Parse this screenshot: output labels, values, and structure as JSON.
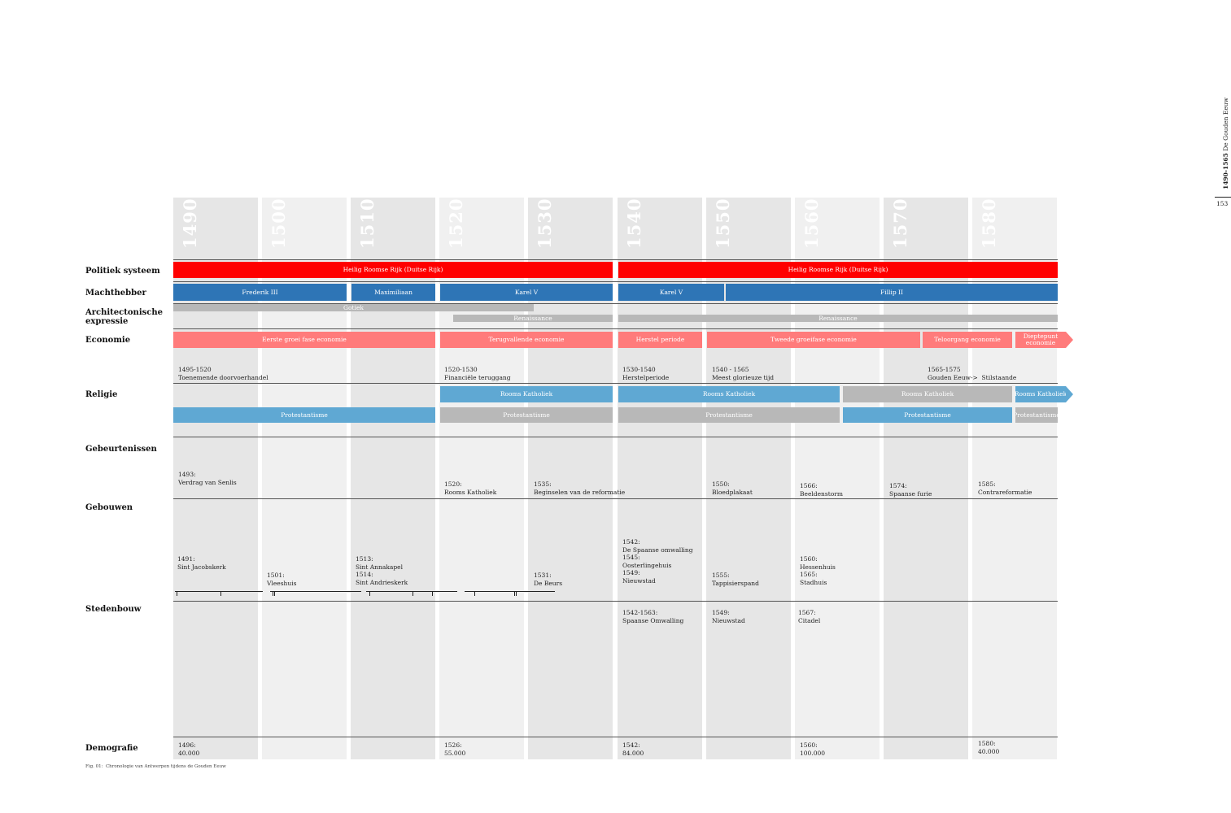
{
  "side_header": {
    "years": "1490-1565",
    "title": "De Gouden Eeuw"
  },
  "page_number": "153",
  "decades": [
    "1490",
    "1500",
    "1510",
    "1520",
    "1530",
    "1540",
    "1550",
    "1560",
    "1570",
    "1580"
  ],
  "rows": {
    "politiek": "Politiek systeem",
    "machthebber": "Machthebber",
    "architectonische_1": "Architectonische",
    "architectonische_2": "expressie",
    "economie": "Economie",
    "religie": "Religie",
    "gebeurtenissen": "Gebeurtenissen",
    "gebouwen": "Gebouwen",
    "stedenbouw": "Stedenbouw",
    "demografie": "Demografie"
  },
  "politiek": [
    "Heilig Roomse Rijk (Duitse Rijk)",
    "Heilig Roomse Rijk (Duitse Rijk)"
  ],
  "machthebber": [
    "Frederik III",
    "Maximiliaan",
    "Karel V",
    "Karel V",
    "Fillip II"
  ],
  "architectuur": [
    "Gotiek",
    "Renaissance",
    "Renaissance"
  ],
  "economie": [
    "Eerste groei fase economie",
    "Terugvallende economie",
    "Herstel periode",
    "Tweede groeifase economie",
    "Teloorgang economie",
    "Dieptepunt",
    "economie"
  ],
  "economie_notes": [
    {
      "years": "1495-1520",
      "text": "Toenemende doorvoerhandel"
    },
    {
      "years": "1520-1530",
      "text": "Financiële teruggang"
    },
    {
      "years": "1530-1540",
      "text": "Herstelperiode"
    },
    {
      "years": "1540 - 1565",
      "text": "Meest glorieuze tijd"
    },
    {
      "years": "1565-1575",
      "text": "Gouden Eeuw->  Stilstaande"
    }
  ],
  "religie": [
    "Rooms Katholiek",
    "Rooms Katholiek",
    "Rooms Katholiek",
    "Rooms Katholiek",
    "Protestantisme",
    "Protestantisme",
    "Protestantisme",
    "Protestantisme",
    "Protestantisme"
  ],
  "gebeurtenissen": [
    {
      "year": "1493:",
      "text": "Verdrag van Senlis"
    },
    {
      "year": "1520:",
      "text": "Rooms Katholiek"
    },
    {
      "year": "1535:",
      "text": "Beginselen van de reformatie"
    },
    {
      "year": "1550:",
      "text": "Bloedplakaat"
    },
    {
      "year": "1566:",
      "text": "Beeldenstorm"
    },
    {
      "year": "1574:",
      "text": "Spaanse furie"
    },
    {
      "year": "1585:",
      "text": "Contrareformatie"
    }
  ],
  "gebouwen": [
    {
      "year": "1491:",
      "text": "Sint Jacobskerk"
    },
    {
      "year": "1501:",
      "text": "Vleeshuis"
    },
    {
      "year": "1513:",
      "text": "Sint Annakapel"
    },
    {
      "year": "1514:",
      "text": "Sint Andrieskerk"
    },
    {
      "year": "1531:",
      "text": "De Beurs"
    },
    {
      "year": "1542:",
      "text": "De Spaanse omwalling"
    },
    {
      "year": "1545:",
      "text": "Oosterlingehuis"
    },
    {
      "year": "1549:",
      "text": "Nieuwstad"
    },
    {
      "year": "1555:",
      "text": "Tappisierspand"
    },
    {
      "year": "1560:",
      "text": "Hessenhuis"
    },
    {
      "year": "1565:",
      "text": "Stadhuis"
    }
  ],
  "stedenbouw": [
    {
      "year": "1542-1563:",
      "text": "Spaanse Omwalling"
    },
    {
      "year": "1549:",
      "text": "Nieuwstad"
    },
    {
      "year": "1567:",
      "text": "Citadel"
    }
  ],
  "demografie": [
    {
      "year": "1496:",
      "text": "40.000"
    },
    {
      "year": "1526:",
      "text": "55.000"
    },
    {
      "year": "1542:",
      "text": "84.000"
    },
    {
      "year": "1560:",
      "text": "100.000"
    },
    {
      "year": "1580:",
      "text": "40.000"
    }
  ],
  "caption": "Fig. 01:  Chronologie van Antwerpen tijdens de Gouden Eeuw",
  "colors": {
    "red": "#ff0000",
    "blue": "#2e75b6",
    "grey": "#b8b8b8",
    "pink": "#ff7b7b",
    "lightblue": "#5fa8d3"
  }
}
